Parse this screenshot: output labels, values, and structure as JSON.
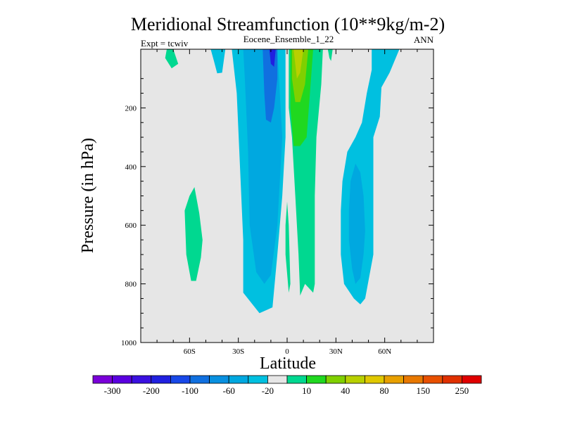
{
  "chart_data": {
    "type": "contour",
    "title": "Meridional Streamfunction (10**9kg/m-2)",
    "subtitle_left": "Expt = tcwiv",
    "subtitle_center": "Eocene_Ensemble_1_22",
    "subtitle_right": "ANN",
    "xlabel": "Latitude",
    "ylabel": "Pressure (in hPa)",
    "xlim": [
      -90,
      90
    ],
    "ylim": [
      0,
      1000
    ],
    "y_inverted": true,
    "x_ticks": [
      {
        "value": -60,
        "label": "60S"
      },
      {
        "value": -30,
        "label": "30S"
      },
      {
        "value": 0,
        "label": "0"
      },
      {
        "value": 30,
        "label": "30N"
      },
      {
        "value": 60,
        "label": "60N"
      }
    ],
    "y_ticks": [
      {
        "value": 200,
        "label": "200"
      },
      {
        "value": 400,
        "label": "400"
      },
      {
        "value": 600,
        "label": "600"
      },
      {
        "value": 800,
        "label": "800"
      },
      {
        "value": 1000,
        "label": "1000"
      }
    ],
    "colorbar": {
      "colors": [
        "#7a00d9",
        "#5a00e0",
        "#3a10e0",
        "#2020e0",
        "#1848e8",
        "#1070e0",
        "#0890e0",
        "#00a8e0",
        "#00c0e0",
        "#e6e6e6",
        "#00d890",
        "#20d820",
        "#80d000",
        "#b8d000",
        "#e0c800",
        "#e8a000",
        "#e87800",
        "#e85000",
        "#e03000",
        "#e00000"
      ],
      "labels": [
        "-300",
        "-200",
        "-100",
        "-60",
        "-20",
        "10",
        "40",
        "80",
        "150",
        "250"
      ]
    },
    "regions": [
      {
        "level": 10,
        "color": "#00d890",
        "description": "SH high-latitude upper lobe",
        "points": [
          [
            -74,
            0
          ],
          [
            -70,
            0
          ],
          [
            -67,
            50
          ],
          [
            -71,
            65
          ],
          [
            -75,
            30
          ]
        ]
      },
      {
        "level": -20,
        "color": "#00c0e0",
        "description": "SH mid-latitude upper lobe",
        "points": [
          [
            -47,
            0
          ],
          [
            -38,
            0
          ],
          [
            -40,
            80
          ],
          [
            -43,
            82
          ],
          [
            -45,
            40
          ]
        ]
      },
      {
        "level": 10,
        "color": "#00d890",
        "description": "SH polar deep cell",
        "points": [
          [
            -57,
            470
          ],
          [
            -54,
            560
          ],
          [
            -52,
            650
          ],
          [
            -53,
            710
          ],
          [
            -56,
            790
          ],
          [
            -59,
            790
          ],
          [
            -62,
            700
          ],
          [
            -63,
            550
          ],
          [
            -60,
            500
          ]
        ]
      },
      {
        "level": -20,
        "color": "#00c0e0",
        "description": "Southern Hadley/Ferrel region",
        "points": [
          [
            -34,
            0
          ],
          [
            -1,
            0
          ],
          [
            -1,
            300
          ],
          [
            -3,
            500
          ],
          [
            -6,
            700
          ],
          [
            -9,
            880
          ],
          [
            -17,
            900
          ],
          [
            -27,
            830
          ],
          [
            -27,
            650
          ],
          [
            -29,
            400
          ],
          [
            -31,
            150
          ]
        ]
      },
      {
        "level": -60,
        "color": "#00a8e0",
        "description": "Southern cell core",
        "points": [
          [
            -27,
            0
          ],
          [
            -6,
            0
          ],
          [
            -3,
            300
          ],
          [
            -6,
            600
          ],
          [
            -10,
            770
          ],
          [
            -14,
            800
          ],
          [
            -19,
            760
          ],
          [
            -23,
            600
          ],
          [
            -24,
            350
          ],
          [
            -26,
            100
          ]
        ]
      },
      {
        "level": -100,
        "color": "#1070e0",
        "description": "Southern cell inner core",
        "points": [
          [
            -15,
            0
          ],
          [
            -6,
            0
          ],
          [
            -6,
            100
          ],
          [
            -8,
            200
          ],
          [
            -10,
            250
          ],
          [
            -13,
            240
          ],
          [
            -14,
            150
          ]
        ]
      },
      {
        "level": -300,
        "color": "#2020e0",
        "description": "Southern cell max",
        "points": [
          [
            -11,
            0
          ],
          [
            -7,
            0
          ],
          [
            -8,
            60
          ],
          [
            -10,
            50
          ]
        ]
      },
      {
        "level": 10,
        "color": "#00d890",
        "description": "Northern Hadley cell",
        "points": [
          [
            1,
            0
          ],
          [
            22,
            0
          ],
          [
            21,
            120
          ],
          [
            18,
            300
          ],
          [
            17,
            500
          ],
          [
            17,
            700
          ],
          [
            17,
            800
          ],
          [
            16,
            830
          ],
          [
            11,
            800
          ],
          [
            8,
            840
          ],
          [
            7,
            700
          ],
          [
            5,
            500
          ],
          [
            3,
            300
          ],
          [
            1,
            200
          ]
        ]
      },
      {
        "level": 40,
        "color": "#20d820",
        "description": "Northern cell core",
        "points": [
          [
            2,
            0
          ],
          [
            16,
            0
          ],
          [
            14,
            150
          ],
          [
            12,
            300
          ],
          [
            8,
            330
          ],
          [
            4,
            330
          ],
          [
            2,
            200
          ]
        ]
      },
      {
        "level": 80,
        "color": "#80d000",
        "description": "Northern cell inner core",
        "points": [
          [
            3,
            0
          ],
          [
            13,
            0
          ],
          [
            11,
            120
          ],
          [
            8,
            180
          ],
          [
            5,
            180
          ],
          [
            3,
            100
          ]
        ]
      },
      {
        "level": 150,
        "color": "#b8d000",
        "description": "Northern cell max",
        "points": [
          [
            4,
            0
          ],
          [
            10,
            0
          ],
          [
            8,
            80
          ],
          [
            6,
            100
          ]
        ]
      },
      {
        "level": 10,
        "color": "#00d890",
        "description": "NH high-latitude upper patch",
        "points": [
          [
            25,
            0
          ],
          [
            28,
            0
          ],
          [
            27,
            40
          ],
          [
            26,
            30
          ]
        ]
      },
      {
        "level": -20,
        "color": "#00c0e0",
        "description": "Northern Ferrel region",
        "points": [
          [
            35,
            0
          ],
          [
            52,
            0
          ],
          [
            52,
            70
          ],
          [
            49,
            150
          ],
          [
            46,
            250
          ],
          [
            42,
            300
          ],
          [
            37,
            350
          ],
          [
            34,
            450
          ],
          [
            33,
            550
          ],
          [
            33,
            700
          ],
          [
            35,
            800
          ],
          [
            41,
            850
          ],
          [
            45,
            870
          ],
          [
            48,
            850
          ],
          [
            53,
            700
          ],
          [
            53,
            500
          ],
          [
            53,
            300
          ],
          [
            57,
            230
          ],
          [
            58,
            130
          ],
          [
            63,
            80
          ],
          [
            69,
            0
          ]
        ]
      },
      {
        "level": -60,
        "color": "#00a8e0",
        "description": "Northern Ferrel core",
        "points": [
          [
            42,
            390
          ],
          [
            45,
            420
          ],
          [
            47,
            500
          ],
          [
            48,
            620
          ],
          [
            47,
            700
          ],
          [
            45,
            780
          ],
          [
            42,
            800
          ],
          [
            40,
            750
          ],
          [
            38,
            650
          ],
          [
            38,
            550
          ],
          [
            39,
            450
          ]
        ]
      },
      {
        "level": 10,
        "color": "#00d890",
        "description": "Narrow equatorial filament",
        "points": [
          [
            0,
            520
          ],
          [
            1,
            600
          ],
          [
            2,
            800
          ],
          [
            1,
            830
          ],
          [
            -1,
            700
          ],
          [
            -1,
            600
          ]
        ]
      }
    ]
  }
}
